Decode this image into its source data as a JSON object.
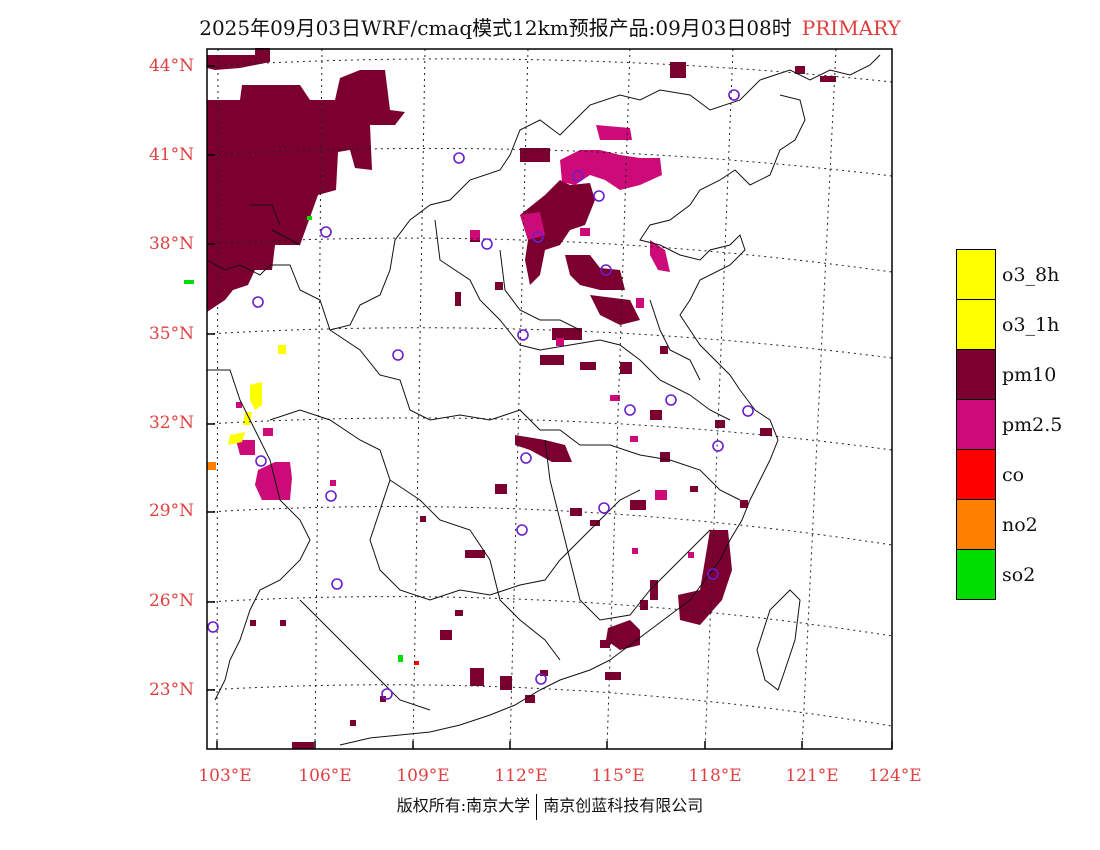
{
  "title": {
    "main": "2025年09月03日WRF/cmaq模式12km预报产品:09月03日08时",
    "mode": "PRIMARY"
  },
  "lat_labels": [
    "44°N",
    "41°N",
    "38°N",
    "35°N",
    "32°N",
    "29°N",
    "26°N",
    "23°N"
  ],
  "lon_labels": [
    "103°E",
    "106°E",
    "109°E",
    "112°E",
    "115°E",
    "118°E",
    "121°E",
    "124°E"
  ],
  "legend": [
    {
      "label": "o3_8h",
      "color": "#ffff00"
    },
    {
      "label": "o3_1h",
      "color": "#ffff00"
    },
    {
      "label": "pm10",
      "color": "#7b0030"
    },
    {
      "label": "pm2.5",
      "color": "#cc0a78"
    },
    {
      "label": "co",
      "color": "#ff0000"
    },
    {
      "label": "no2",
      "color": "#ff7f00"
    },
    {
      "label": "so2",
      "color": "#00dd00"
    }
  ],
  "footer": {
    "left": "版权所有:南京大学",
    "right": "南京创蓝科技有限公司"
  }
}
